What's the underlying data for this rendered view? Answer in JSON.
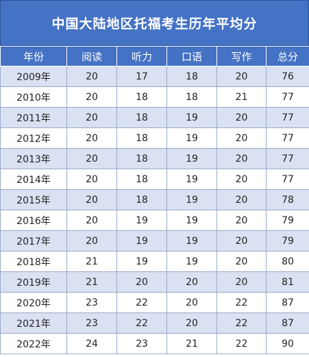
{
  "title": "中国大陆地区托福考生历年平均分",
  "headers": [
    "年份",
    "阅读",
    "听力",
    "口语",
    "写作",
    "总分"
  ],
  "rows": [
    [
      "2009年",
      "20",
      "17",
      "18",
      "20",
      "76"
    ],
    [
      "2010年",
      "20",
      "18",
      "18",
      "21",
      "77"
    ],
    [
      "2011年",
      "20",
      "18",
      "19",
      "20",
      "77"
    ],
    [
      "2012年",
      "20",
      "18",
      "19",
      "20",
      "77"
    ],
    [
      "2013年",
      "20",
      "18",
      "19",
      "20",
      "77"
    ],
    [
      "2014年",
      "20",
      "18",
      "19",
      "20",
      "77"
    ],
    [
      "2015年",
      "20",
      "18",
      "19",
      "20",
      "78"
    ],
    [
      "2016年",
      "20",
      "19",
      "19",
      "20",
      "79"
    ],
    [
      "2017年",
      "20",
      "19",
      "19",
      "20",
      "79"
    ],
    [
      "2018年",
      "21",
      "19",
      "19",
      "20",
      "80"
    ],
    [
      "2019年",
      "21",
      "20",
      "20",
      "20",
      "81"
    ],
    [
      "2020年",
      "23",
      "22",
      "20",
      "22",
      "87"
    ],
    [
      "2021年",
      "23",
      "22",
      "20",
      "22",
      "87"
    ],
    [
      "2022年",
      "24",
      "23",
      "21",
      "22",
      "90"
    ]
  ],
  "colors": {
    "header_bg": "#4472c4",
    "band": "#d9e1f2"
  }
}
